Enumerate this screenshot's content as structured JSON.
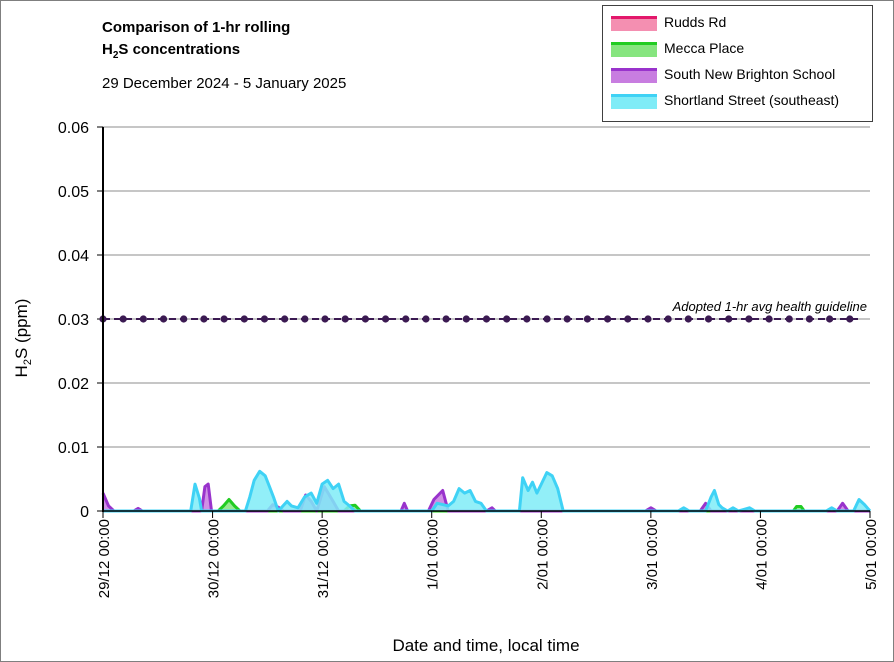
{
  "chart_data": {
    "type": "area",
    "title_line1": "Comparison of 1-hr rolling",
    "title_line2_main": "H",
    "title_line2_sub": "2",
    "title_line2_rest": "S concentrations",
    "subtitle": "29 December 2024 - 5 January 2025",
    "xlabel": "Date and time, local time",
    "ylabel": "H₂S (ppm)",
    "ylim": [
      0,
      0.06
    ],
    "yticks": [
      "0",
      "0.01",
      "0.02",
      "0.03",
      "0.04",
      "0.05",
      "0.06"
    ],
    "xlim": [
      0,
      7
    ],
    "xticks": [
      {
        "x": 0,
        "label": "29/12 00:00"
      },
      {
        "x": 1,
        "label": "30/12 00:00"
      },
      {
        "x": 2,
        "label": "31/12 00:00"
      },
      {
        "x": 3,
        "label": "1/01 00:00"
      },
      {
        "x": 4,
        "label": "2/01 00:00"
      },
      {
        "x": 5,
        "label": "3/01 00:00"
      },
      {
        "x": 6,
        "label": "4/01 00:00"
      },
      {
        "x": 7,
        "label": "5/01 00:00"
      }
    ],
    "guideline": {
      "value": 0.03,
      "label": "Adopted 1-hr avg health guideline",
      "color": "#3b1a52"
    },
    "grid": true,
    "legend_position": "top-right",
    "series": [
      {
        "name": "Rudds Rd",
        "fill": "#f48fb1",
        "stroke": "#e3176b",
        "points": [
          [
            0,
            0
          ],
          [
            7,
            0
          ]
        ]
      },
      {
        "name": "Mecca Place",
        "fill": "#86e57f",
        "stroke": "#22cc22",
        "points": [
          [
            0,
            0
          ],
          [
            1.05,
            0
          ],
          [
            1.1,
            0.0008
          ],
          [
            1.15,
            0.0018
          ],
          [
            1.2,
            0.0008
          ],
          [
            1.25,
            0
          ],
          [
            2.2,
            0
          ],
          [
            2.25,
            0.0008
          ],
          [
            2.3,
            0.0009
          ],
          [
            2.35,
            0
          ],
          [
            6.3,
            0
          ],
          [
            6.33,
            0.0007
          ],
          [
            6.37,
            0.0007
          ],
          [
            6.4,
            0
          ],
          [
            7,
            0
          ]
        ]
      },
      {
        "name": "South New Brighton School",
        "fill": "#c87de0",
        "stroke": "#9933cc",
        "points": [
          [
            0,
            0.0028
          ],
          [
            0.05,
            0.0008
          ],
          [
            0.1,
            0
          ],
          [
            0.28,
            0
          ],
          [
            0.32,
            0.0004
          ],
          [
            0.36,
            0
          ],
          [
            0.9,
            0
          ],
          [
            0.93,
            0.0038
          ],
          [
            0.96,
            0.0042
          ],
          [
            0.99,
            0
          ],
          [
            1.5,
            0
          ],
          [
            1.55,
            0.001
          ],
          [
            1.6,
            0.0006
          ],
          [
            1.65,
            0
          ],
          [
            1.8,
            0
          ],
          [
            1.85,
            0.0025
          ],
          [
            1.9,
            0.0015
          ],
          [
            1.95,
            0
          ],
          [
            2.02,
            0.0038
          ],
          [
            2.1,
            0.0015
          ],
          [
            2.15,
            0
          ],
          [
            2.72,
            0
          ],
          [
            2.75,
            0.0012
          ],
          [
            2.78,
            0
          ],
          [
            2.97,
            0
          ],
          [
            3.02,
            0.0018
          ],
          [
            3.1,
            0.0032
          ],
          [
            3.15,
            0
          ],
          [
            3.5,
            0
          ],
          [
            3.55,
            0.0005
          ],
          [
            3.58,
            0
          ],
          [
            4.95,
            0
          ],
          [
            5,
            0.0005
          ],
          [
            5.05,
            0
          ],
          [
            5.45,
            0
          ],
          [
            5.5,
            0.0012
          ],
          [
            5.55,
            0
          ],
          [
            6.7,
            0
          ],
          [
            6.75,
            0.0012
          ],
          [
            6.8,
            0
          ],
          [
            7,
            0
          ]
        ]
      },
      {
        "name": "Shortland Street (southeast)",
        "fill": "#7fecf7",
        "stroke": "#3fd2f5",
        "points": [
          [
            0,
            0
          ],
          [
            0.8,
            0
          ],
          [
            0.84,
            0.0042
          ],
          [
            0.88,
            0.002
          ],
          [
            0.9,
            0
          ],
          [
            1.3,
            0
          ],
          [
            1.34,
            0.0022
          ],
          [
            1.38,
            0.0048
          ],
          [
            1.43,
            0.0062
          ],
          [
            1.48,
            0.0055
          ],
          [
            1.52,
            0.0038
          ],
          [
            1.56,
            0.002
          ],
          [
            1.6,
            0
          ],
          [
            1.68,
            0.0015
          ],
          [
            1.72,
            0.0008
          ],
          [
            1.78,
            0.0005
          ],
          [
            1.84,
            0.0022
          ],
          [
            1.9,
            0.0028
          ],
          [
            1.95,
            0.0012
          ],
          [
            2.0,
            0.0042
          ],
          [
            2.05,
            0.0048
          ],
          [
            2.1,
            0.0035
          ],
          [
            2.15,
            0.0042
          ],
          [
            2.2,
            0.0015
          ],
          [
            2.25,
            0.0008
          ],
          [
            2.3,
            0
          ],
          [
            3.0,
            0
          ],
          [
            3.05,
            0.0012
          ],
          [
            3.1,
            0.001
          ],
          [
            3.15,
            0.0008
          ],
          [
            3.2,
            0.0015
          ],
          [
            3.25,
            0.0035
          ],
          [
            3.3,
            0.0028
          ],
          [
            3.35,
            0.0032
          ],
          [
            3.4,
            0.0015
          ],
          [
            3.45,
            0.0012
          ],
          [
            3.5,
            0
          ],
          [
            3.8,
            0
          ],
          [
            3.83,
            0.0052
          ],
          [
            3.88,
            0.0032
          ],
          [
            3.92,
            0.0045
          ],
          [
            3.96,
            0.0028
          ],
          [
            4.0,
            0.0042
          ],
          [
            4.05,
            0.006
          ],
          [
            4.1,
            0.0055
          ],
          [
            4.15,
            0.0035
          ],
          [
            4.2,
            0
          ],
          [
            5.25,
            0
          ],
          [
            5.3,
            0.0005
          ],
          [
            5.35,
            0
          ],
          [
            5.5,
            0
          ],
          [
            5.55,
            0.0022
          ],
          [
            5.58,
            0.0032
          ],
          [
            5.62,
            0.001
          ],
          [
            5.65,
            0.0005
          ],
          [
            5.7,
            0
          ],
          [
            5.75,
            0.0005
          ],
          [
            5.8,
            0
          ],
          [
            5.9,
            0.0005
          ],
          [
            5.95,
            0
          ],
          [
            6.6,
            0
          ],
          [
            6.65,
            0.0005
          ],
          [
            6.7,
            0
          ],
          [
            6.85,
            0
          ],
          [
            6.9,
            0.0018
          ],
          [
            6.95,
            0.001
          ],
          [
            7,
            0
          ]
        ]
      }
    ]
  }
}
